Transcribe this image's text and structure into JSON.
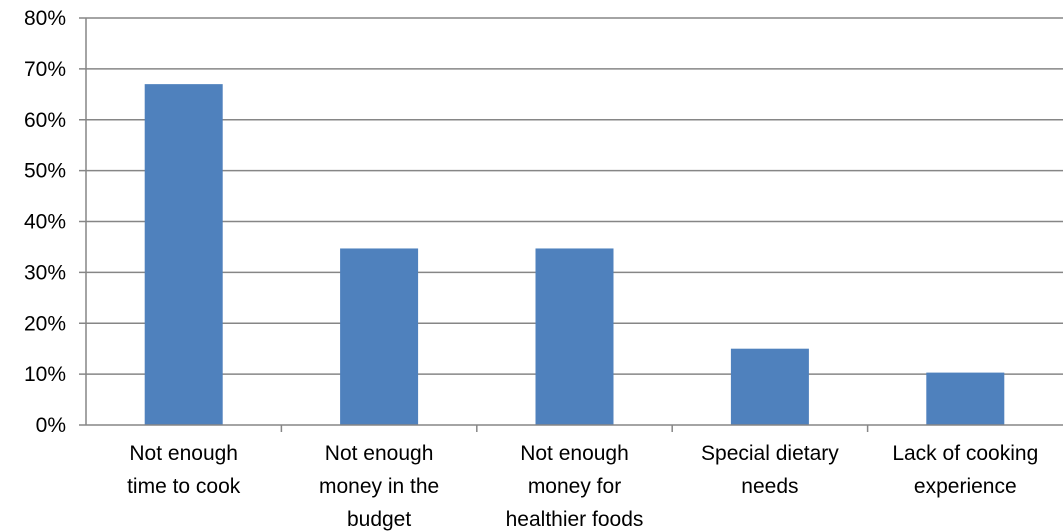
{
  "chart_data": {
    "type": "bar",
    "title": "",
    "xlabel": "",
    "ylabel": "",
    "categories": [
      [
        "Not enough",
        "time to cook"
      ],
      [
        "Not enough",
        "money in the",
        "budget"
      ],
      [
        "Not enough",
        "money for",
        "healthier foods"
      ],
      [
        "Special dietary",
        "needs"
      ],
      [
        "Lack of cooking",
        "experience"
      ]
    ],
    "values": [
      67,
      34.7,
      34.7,
      15,
      10.3
    ],
    "ylim": [
      0,
      80
    ],
    "y_ticks": [
      "0%",
      "10%",
      "20%",
      "30%",
      "40%",
      "50%",
      "60%",
      "70%",
      "80%"
    ],
    "grid": true,
    "legend": "none",
    "bar_color": "#4f81bd",
    "grid_color": "#868686",
    "axis_color": "#868686"
  }
}
